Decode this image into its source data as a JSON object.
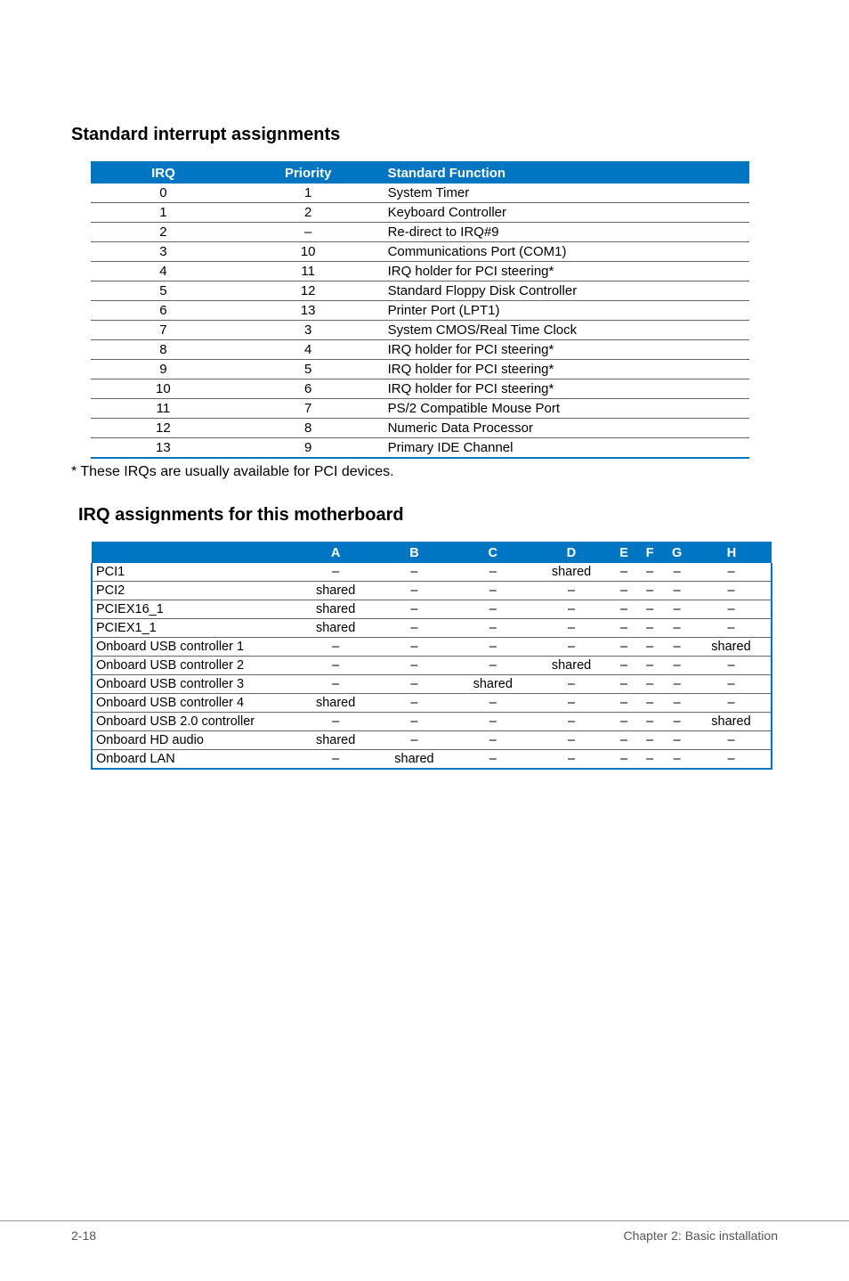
{
  "sections": {
    "standard_title": "Standard interrupt assignments",
    "irq_title": "IRQ assignments for this motherboard"
  },
  "irq_table": {
    "headers": [
      "IRQ",
      "Priority",
      "Standard Function"
    ],
    "rows": [
      [
        "0",
        "1",
        "System Timer"
      ],
      [
        "1",
        "2",
        "Keyboard Controller"
      ],
      [
        "2",
        "–",
        "Re-direct to IRQ#9"
      ],
      [
        "3",
        "10",
        "Communications Port (COM1)"
      ],
      [
        "4",
        "11",
        "IRQ holder for PCI steering*"
      ],
      [
        "5",
        "12",
        "Standard Floppy Disk Controller"
      ],
      [
        "6",
        "13",
        "Printer Port (LPT1)"
      ],
      [
        "7",
        "3",
        "System CMOS/Real Time Clock"
      ],
      [
        "8",
        "4",
        "IRQ holder for PCI steering*"
      ],
      [
        "9",
        "5",
        "IRQ holder for PCI steering*"
      ],
      [
        "10",
        "6",
        "IRQ holder for PCI steering*"
      ],
      [
        "11",
        "7",
        "PS/2 Compatible Mouse Port"
      ],
      [
        "12",
        "8",
        "Numeric Data Processor"
      ],
      [
        "13",
        "9",
        "Primary IDE Channel"
      ]
    ]
  },
  "footnote": "* These IRQs are usually available for PCI devices.",
  "assign_table": {
    "headers": [
      "",
      "A",
      "B",
      "C",
      "D",
      "E",
      "F",
      "G",
      "H"
    ],
    "rows": [
      [
        "PCI1",
        "–",
        "–",
        "–",
        "shared",
        "–",
        "–",
        "–",
        "–"
      ],
      [
        "PCI2",
        "shared",
        "–",
        "–",
        "–",
        "–",
        "–",
        "–",
        "–"
      ],
      [
        "PCIEX16_1",
        "shared",
        "–",
        "–",
        "–",
        "–",
        "–",
        "–",
        "–"
      ],
      [
        "PCIEX1_1",
        "shared",
        "–",
        "–",
        "–",
        "–",
        "–",
        "–",
        "–"
      ],
      [
        "Onboard USB controller 1",
        "–",
        "–",
        "–",
        "–",
        "–",
        "–",
        "–",
        "shared"
      ],
      [
        "Onboard USB controller 2",
        "–",
        "–",
        "–",
        "shared",
        "–",
        "–",
        "–",
        "–"
      ],
      [
        "Onboard USB controller 3",
        "–",
        "–",
        "shared",
        "–",
        "–",
        "–",
        "–",
        "–"
      ],
      [
        "Onboard USB controller 4",
        "shared",
        "–",
        "–",
        "–",
        "–",
        "–",
        "–",
        "–"
      ],
      [
        "Onboard USB 2.0 controller",
        "–",
        "–",
        "–",
        "–",
        "–",
        "–",
        "–",
        "shared"
      ],
      [
        "Onboard HD audio",
        "shared",
        "–",
        "–",
        "–",
        "–",
        "–",
        "–",
        "–"
      ],
      [
        "Onboard LAN",
        "–",
        "shared",
        "–",
        "–",
        "–",
        "–",
        "–",
        "–"
      ]
    ]
  },
  "footer": {
    "left": "2-18",
    "right": "Chapter 2: Basic installation"
  },
  "colors": {
    "header_bg": "#0075c2",
    "header_fg": "#ffffff",
    "row_border": "#666666",
    "text": "#000000"
  }
}
